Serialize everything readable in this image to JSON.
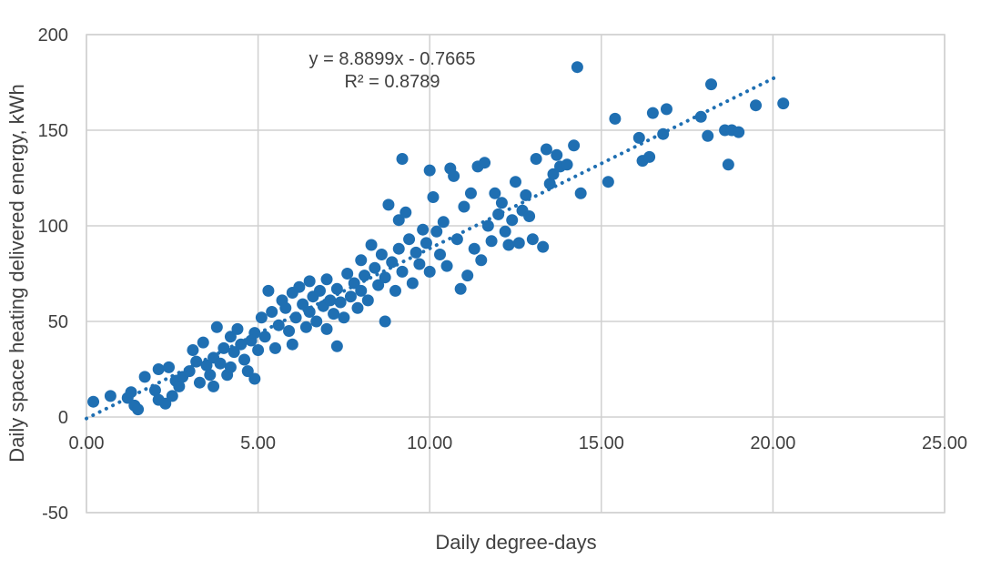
{
  "chart_data": {
    "type": "scatter",
    "title": "",
    "xlabel": "Daily degree-days",
    "ylabel": "Daily space heating delivered energy, kWh",
    "xlim": [
      0,
      25
    ],
    "ylim": [
      -50,
      200
    ],
    "x_ticks": [
      "0.00",
      "5.00",
      "10.00",
      "15.00",
      "20.00",
      "25.00"
    ],
    "y_ticks": [
      "-50",
      "0",
      "50",
      "100",
      "150",
      "200"
    ],
    "grid": true,
    "legend": "none",
    "marker_color": "#1f6fb2",
    "trendline": {
      "style": "dotted",
      "slope": 8.8899,
      "intercept": -0.7665,
      "x_range": [
        0,
        20.1
      ],
      "equation_label": "y = 8.8899x - 0.7665",
      "r2_label": "R² = 0.8789"
    },
    "series": [
      {
        "points": [
          [
            0.2,
            8
          ],
          [
            0.7,
            11
          ],
          [
            1.2,
            10
          ],
          [
            1.3,
            13
          ],
          [
            1.4,
            6
          ],
          [
            1.5,
            4
          ],
          [
            1.7,
            21
          ],
          [
            2.0,
            14
          ],
          [
            2.1,
            9
          ],
          [
            2.1,
            25
          ],
          [
            2.3,
            7
          ],
          [
            2.4,
            26
          ],
          [
            2.5,
            11
          ],
          [
            2.6,
            19
          ],
          [
            2.7,
            16
          ],
          [
            2.8,
            21
          ],
          [
            3.0,
            24
          ],
          [
            3.1,
            35
          ],
          [
            3.2,
            29
          ],
          [
            3.3,
            18
          ],
          [
            3.4,
            39
          ],
          [
            3.5,
            27
          ],
          [
            3.6,
            22
          ],
          [
            3.7,
            31
          ],
          [
            3.7,
            16
          ],
          [
            3.8,
            47
          ],
          [
            3.9,
            28
          ],
          [
            4.0,
            36
          ],
          [
            4.1,
            22
          ],
          [
            4.2,
            42
          ],
          [
            4.2,
            26
          ],
          [
            4.3,
            34
          ],
          [
            4.4,
            46
          ],
          [
            4.5,
            38
          ],
          [
            4.6,
            30
          ],
          [
            4.7,
            24
          ],
          [
            4.8,
            40
          ],
          [
            4.9,
            20
          ],
          [
            4.9,
            44
          ],
          [
            5.0,
            35
          ],
          [
            5.1,
            52
          ],
          [
            5.2,
            42
          ],
          [
            5.3,
            66
          ],
          [
            5.4,
            55
          ],
          [
            5.5,
            36
          ],
          [
            5.6,
            48
          ],
          [
            5.7,
            61
          ],
          [
            5.8,
            57
          ],
          [
            5.9,
            45
          ],
          [
            6.0,
            65
          ],
          [
            6.0,
            38
          ],
          [
            6.1,
            52
          ],
          [
            6.2,
            68
          ],
          [
            6.3,
            59
          ],
          [
            6.4,
            47
          ],
          [
            6.5,
            71
          ],
          [
            6.5,
            55
          ],
          [
            6.6,
            63
          ],
          [
            6.7,
            50
          ],
          [
            6.8,
            66
          ],
          [
            6.9,
            58
          ],
          [
            7.0,
            46
          ],
          [
            7.0,
            72
          ],
          [
            7.1,
            61
          ],
          [
            7.2,
            54
          ],
          [
            7.3,
            67
          ],
          [
            7.3,
            37
          ],
          [
            7.4,
            60
          ],
          [
            7.5,
            52
          ],
          [
            7.6,
            75
          ],
          [
            7.7,
            63
          ],
          [
            7.8,
            70
          ],
          [
            7.9,
            57
          ],
          [
            8.0,
            82
          ],
          [
            8.0,
            66
          ],
          [
            8.1,
            74
          ],
          [
            8.2,
            61
          ],
          [
            8.3,
            90
          ],
          [
            8.4,
            78
          ],
          [
            8.5,
            69
          ],
          [
            8.6,
            85
          ],
          [
            8.7,
            50
          ],
          [
            8.7,
            73
          ],
          [
            8.8,
            111
          ],
          [
            8.9,
            81
          ],
          [
            9.0,
            66
          ],
          [
            9.1,
            103
          ],
          [
            9.1,
            88
          ],
          [
            9.2,
            135
          ],
          [
            9.2,
            76
          ],
          [
            9.3,
            107
          ],
          [
            9.4,
            93
          ],
          [
            9.5,
            70
          ],
          [
            9.6,
            86
          ],
          [
            9.7,
            80
          ],
          [
            9.8,
            98
          ],
          [
            9.9,
            91
          ],
          [
            10.0,
            129
          ],
          [
            10.0,
            76
          ],
          [
            10.1,
            115
          ],
          [
            10.2,
            97
          ],
          [
            10.3,
            85
          ],
          [
            10.4,
            102
          ],
          [
            10.5,
            79
          ],
          [
            10.6,
            130
          ],
          [
            10.7,
            126
          ],
          [
            10.8,
            93
          ],
          [
            10.9,
            67
          ],
          [
            11.0,
            110
          ],
          [
            11.1,
            74
          ],
          [
            11.2,
            117
          ],
          [
            11.3,
            88
          ],
          [
            11.4,
            131
          ],
          [
            11.5,
            82
          ],
          [
            11.6,
            133
          ],
          [
            11.7,
            100
          ],
          [
            11.8,
            92
          ],
          [
            11.9,
            117
          ],
          [
            12.0,
            106
          ],
          [
            12.1,
            112
          ],
          [
            12.2,
            97
          ],
          [
            12.3,
            90
          ],
          [
            12.4,
            103
          ],
          [
            12.5,
            123
          ],
          [
            12.6,
            91
          ],
          [
            12.7,
            108
          ],
          [
            12.8,
            116
          ],
          [
            12.9,
            105
          ],
          [
            13.0,
            93
          ],
          [
            13.1,
            135
          ],
          [
            13.3,
            89
          ],
          [
            13.4,
            140
          ],
          [
            13.5,
            122
          ],
          [
            13.6,
            127
          ],
          [
            13.7,
            137
          ],
          [
            13.8,
            131
          ],
          [
            14.0,
            132
          ],
          [
            14.2,
            142
          ],
          [
            14.3,
            183
          ],
          [
            14.4,
            117
          ],
          [
            15.2,
            123
          ],
          [
            15.4,
            156
          ],
          [
            16.1,
            146
          ],
          [
            16.2,
            134
          ],
          [
            16.4,
            136
          ],
          [
            16.5,
            159
          ],
          [
            16.8,
            148
          ],
          [
            16.9,
            161
          ],
          [
            17.9,
            157
          ],
          [
            18.1,
            147
          ],
          [
            18.2,
            174
          ],
          [
            18.6,
            150
          ],
          [
            18.7,
            132
          ],
          [
            18.8,
            150
          ],
          [
            19.0,
            149
          ],
          [
            19.5,
            163
          ],
          [
            20.3,
            164
          ]
        ]
      }
    ]
  }
}
